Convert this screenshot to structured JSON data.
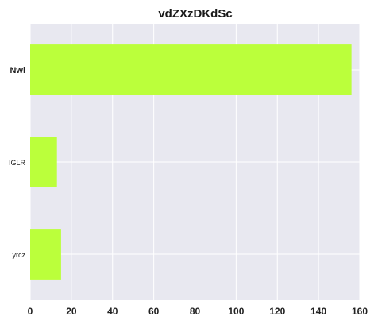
{
  "chart_data": {
    "type": "bar",
    "orientation": "horizontal",
    "title": "vdZXzDKdSc",
    "xlabel": "",
    "ylabel": "",
    "categories": [
      "Nwl",
      "IGLR",
      "yrcz"
    ],
    "category_emphasis": [
      "bold",
      "normal",
      "normal"
    ],
    "values": [
      156,
      13,
      15
    ],
    "xlim": [
      0,
      160
    ],
    "xticks": [
      0,
      20,
      40,
      60,
      80,
      100,
      120,
      140,
      160
    ],
    "grid": true,
    "legend": "none",
    "colors": {
      "bar": "#bbff3b",
      "plot_background": "#e8e8f0",
      "grid": "#ffffff"
    }
  }
}
